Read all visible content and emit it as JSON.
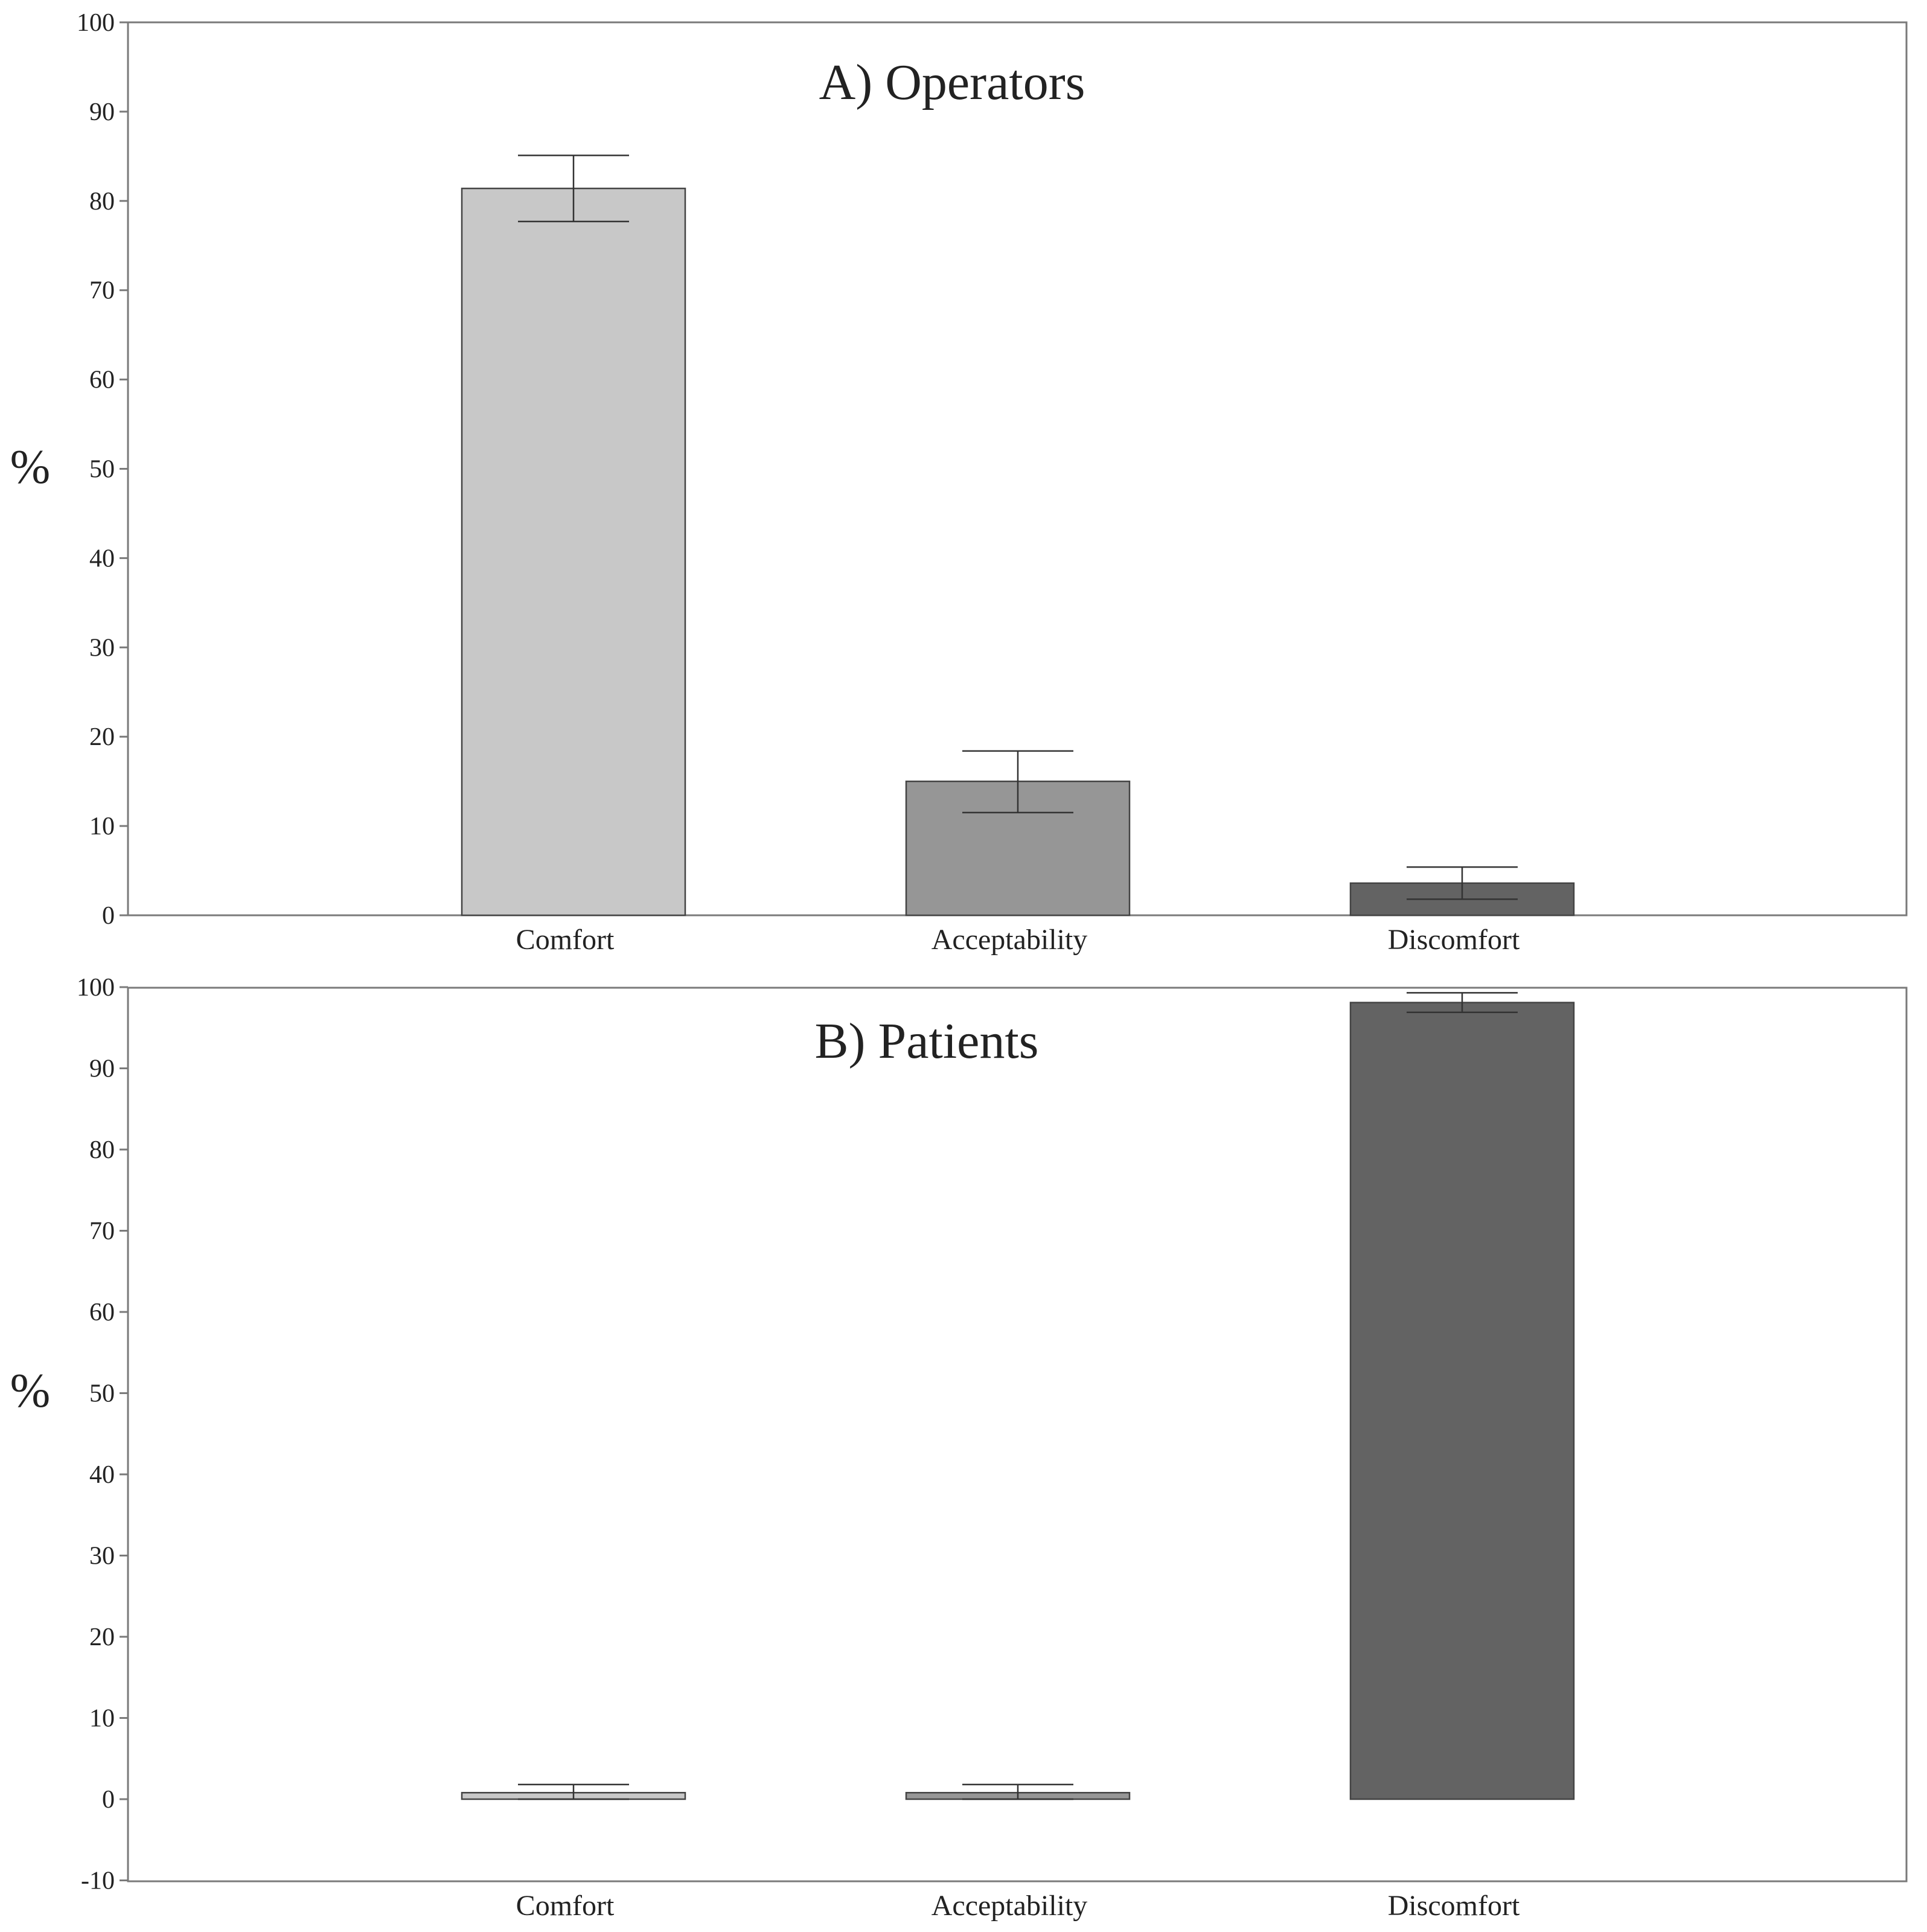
{
  "colors": {
    "comfort": "#c8c8c8",
    "acceptability": "#969696",
    "discomfort": "#636363",
    "frame": "#7a7a7a",
    "error_bar": "#333333",
    "bar_outline": "#444444"
  },
  "chart_data": [
    {
      "type": "bar",
      "title": "A) Operators",
      "xlabel": "",
      "ylabel": "%",
      "ylim": [
        0,
        100
      ],
      "yticks": [
        "0",
        "10",
        "20",
        "30",
        "40",
        "50",
        "60",
        "70",
        "80",
        "90",
        "100"
      ],
      "grid": false,
      "legend": "none",
      "categories": [
        "Comfort",
        "Acceptability",
        "Discomfort"
      ],
      "values": [
        81.4,
        15.0,
        3.6
      ],
      "error_low": [
        77.7,
        11.5,
        1.8
      ],
      "error_high": [
        85.1,
        18.4,
        5.4
      ]
    },
    {
      "type": "bar",
      "title": "B) Patients",
      "xlabel": "",
      "ylabel": "%",
      "ylim": [
        -10,
        100
      ],
      "yticks": [
        "-10",
        "0",
        "10",
        "20",
        "30",
        "40",
        "50",
        "60",
        "70",
        "80",
        "90",
        "100"
      ],
      "grid": false,
      "legend": "none",
      "categories": [
        "Comfort",
        "Acceptability",
        "Discomfort"
      ],
      "values": [
        0.8,
        0.8,
        98.1
      ],
      "error_low": [
        0.0,
        0.0,
        96.9
      ],
      "error_high": [
        1.8,
        1.8,
        99.3
      ]
    }
  ]
}
